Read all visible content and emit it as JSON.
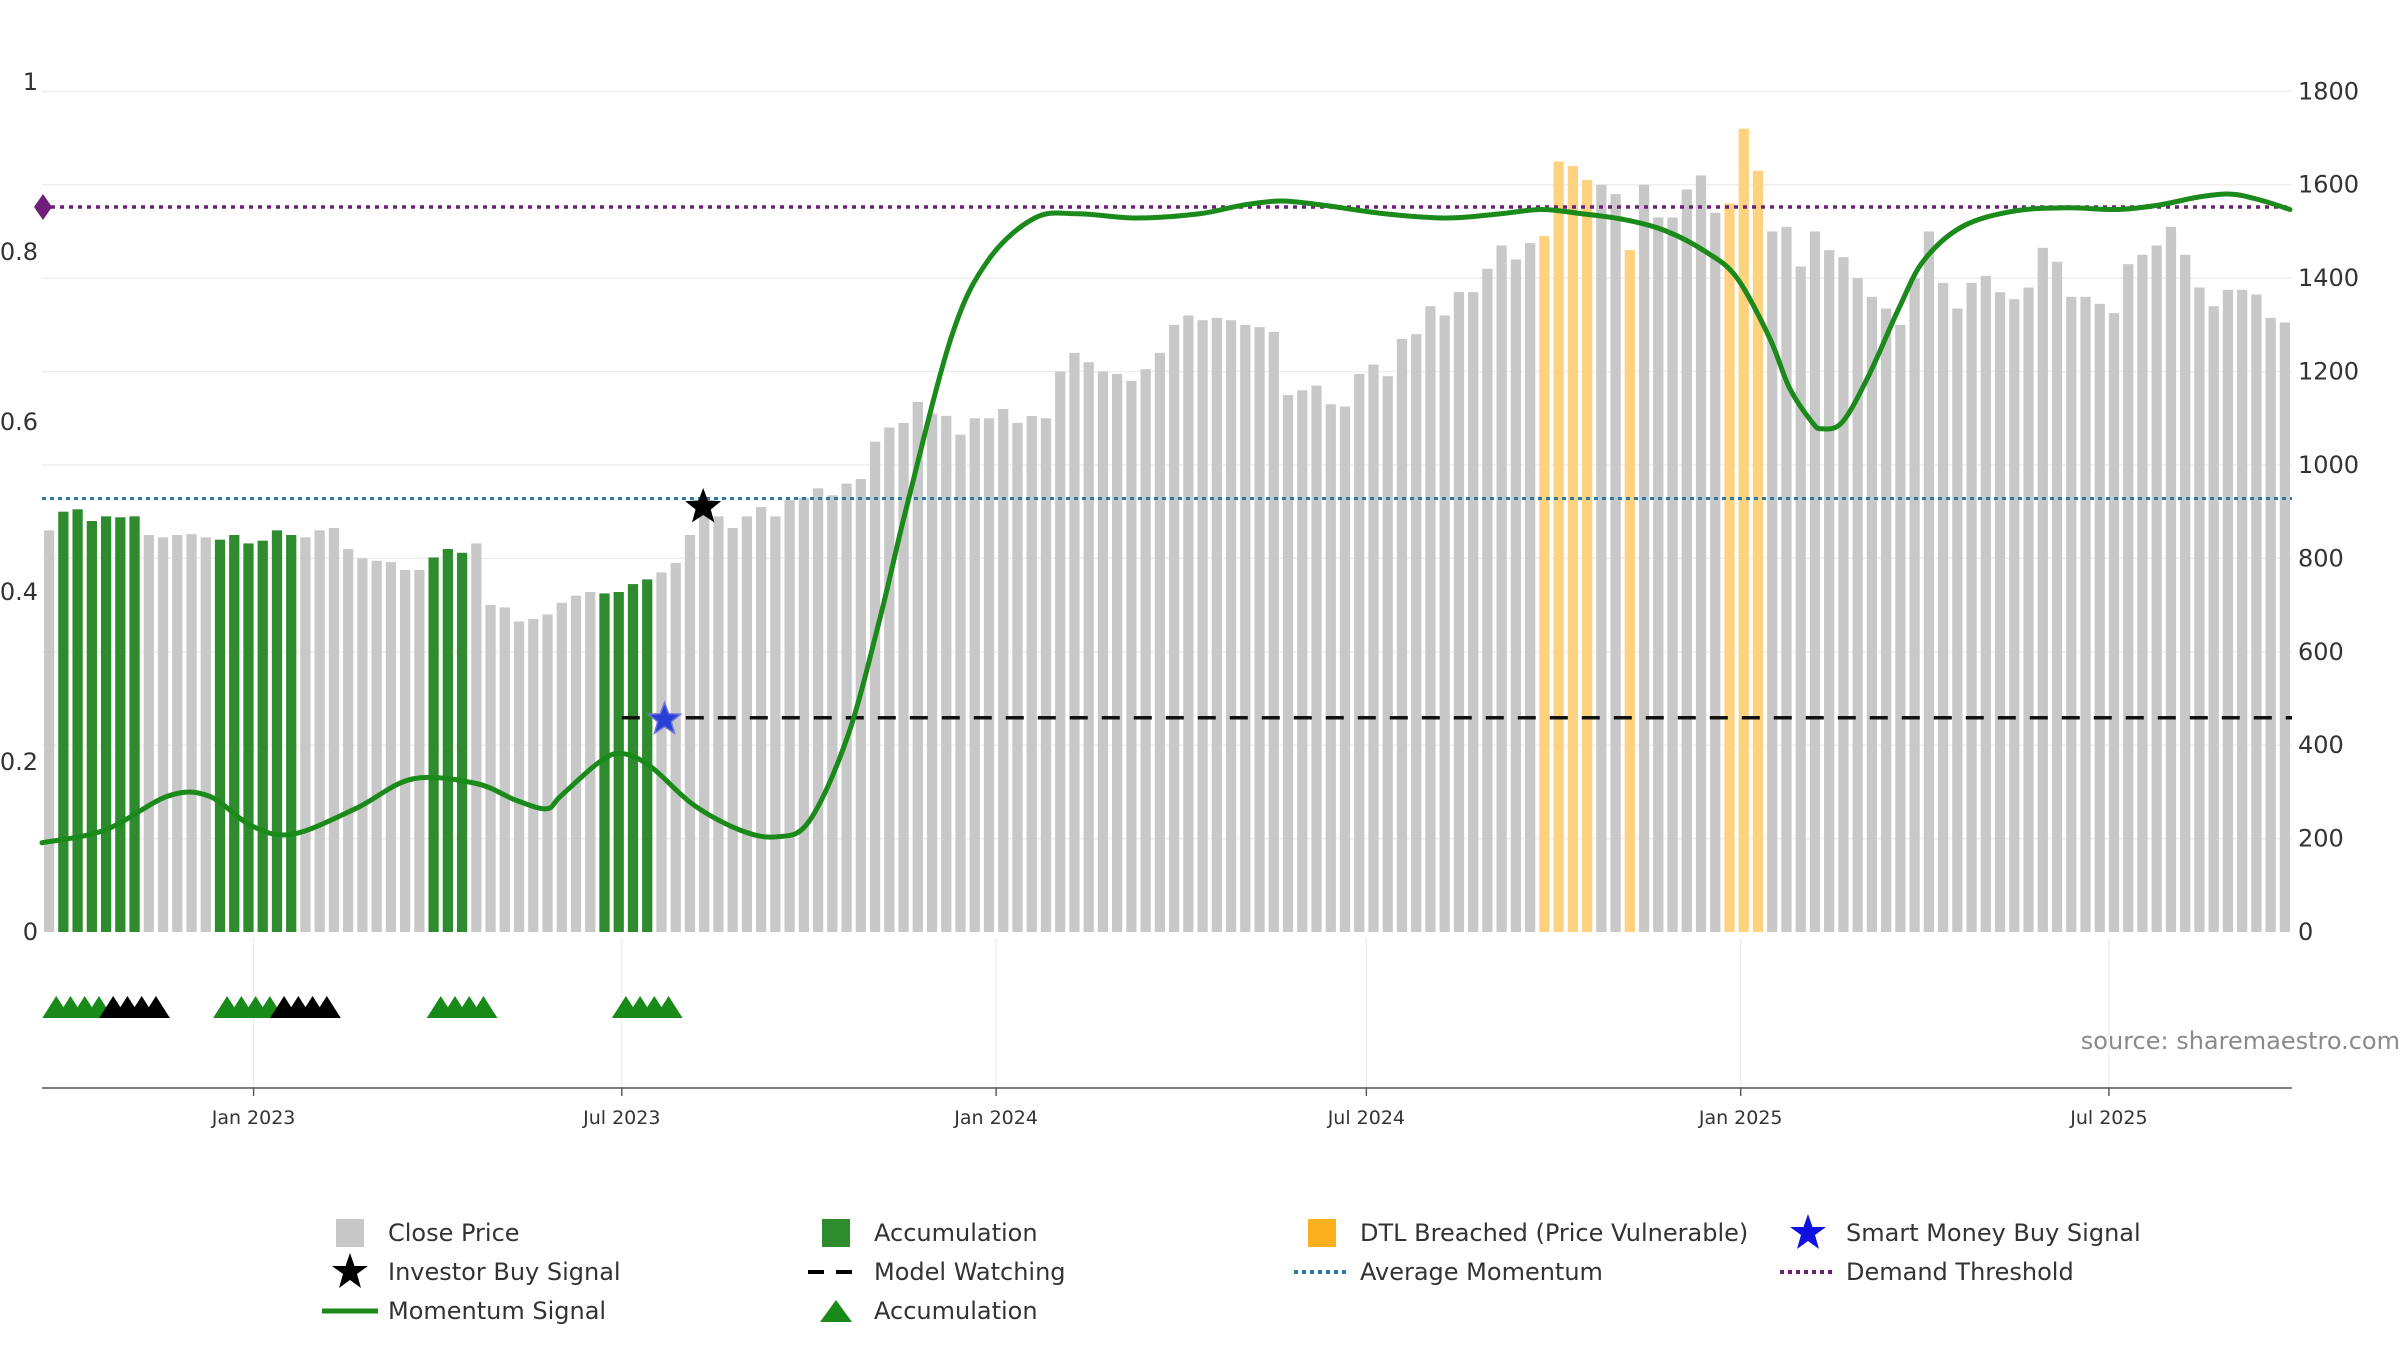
{
  "chart_data": {
    "type": "bar",
    "source": "source: sharemaestro.com",
    "left_axis": {
      "range": [
        0,
        1
      ],
      "ticks": [
        "0",
        "0.2",
        "0.4",
        "0.6",
        "0.8",
        "1"
      ],
      "tick_values": [
        0,
        0.2,
        0.4,
        0.6,
        0.8,
        1
      ]
    },
    "right_axis": {
      "range": [
        0,
        1820
      ],
      "ticks": [
        "0",
        "200",
        "400",
        "600",
        "800",
        "1000",
        "1200",
        "1400",
        "1600",
        "1800"
      ],
      "tick_values": [
        0,
        200,
        400,
        600,
        800,
        1000,
        1200,
        1400,
        1600,
        1800
      ]
    },
    "x_axis": {
      "start": "2022-09-19",
      "end": "2025-09-29",
      "ticks": [
        {
          "date": "2023-01-01",
          "label": "Jan 2023"
        },
        {
          "date": "2023-07-01",
          "label": "Jul 2023"
        },
        {
          "date": "2024-01-01",
          "label": "Jan 2024"
        },
        {
          "date": "2024-07-01",
          "label": "Jul 2024"
        },
        {
          "date": "2025-01-01",
          "label": "Jan 2025"
        },
        {
          "date": "2025-07-01",
          "label": "Jul 2025"
        }
      ]
    },
    "close_price": {
      "name": "Close Price",
      "start": "2022-09-19",
      "values": [
        860,
        900,
        905,
        880,
        890,
        888,
        890,
        850,
        845,
        850,
        852,
        845,
        840,
        850,
        832,
        838,
        860,
        850,
        845,
        860,
        865,
        820,
        800,
        795,
        792,
        775,
        775,
        802,
        820,
        812,
        832,
        700,
        695,
        665,
        670,
        680,
        705,
        720,
        728,
        725,
        728,
        745,
        755,
        770,
        790,
        850,
        900,
        890,
        865,
        890,
        910,
        890,
        925,
        930,
        950,
        935,
        960,
        970,
        1050,
        1080,
        1090,
        1135,
        1110,
        1105,
        1065,
        1100,
        1100,
        1120,
        1090,
        1105,
        1100,
        1200,
        1240,
        1220,
        1200,
        1195,
        1180,
        1205,
        1240,
        1300,
        1320,
        1310,
        1315,
        1310,
        1300,
        1295,
        1285,
        1150,
        1160,
        1170,
        1130,
        1125,
        1195,
        1215,
        1190,
        1270,
        1280,
        1340,
        1320,
        1370,
        1370,
        1420,
        1470,
        1440,
        1475,
        1490,
        1650,
        1640,
        1610,
        1600,
        1580,
        1460,
        1600,
        1530,
        1530,
        1590,
        1620,
        1540,
        1560,
        1720,
        1630,
        1500,
        1510,
        1425,
        1500,
        1460,
        1445,
        1400,
        1360,
        1335,
        1300,
        1400,
        1500,
        1390,
        1335,
        1390,
        1405,
        1370,
        1355,
        1380,
        1465,
        1435,
        1360,
        1360,
        1345,
        1325,
        1430,
        1450,
        1470,
        1510,
        1450,
        1380,
        1340,
        1375,
        1375,
        1365,
        1315,
        1305
      ]
    },
    "bar_colors": {
      "default": "#c8c8c8",
      "accumulation": "#2e8b2e",
      "dtl": "#ffd27f"
    },
    "accumulation_ranges": [
      [
        1,
        6
      ],
      [
        12,
        17
      ],
      [
        27,
        29
      ],
      [
        39,
        42
      ]
    ],
    "dtl_ranges": [
      [
        105,
        108
      ],
      [
        111,
        111
      ],
      [
        118,
        120
      ]
    ],
    "momentum": {
      "name": "Momentum Signal",
      "points": [
        [
          "2022-09-19",
          0.105
        ],
        [
          "2022-10-20",
          0.12
        ],
        [
          "2022-11-20",
          0.16
        ],
        [
          "2022-12-10",
          0.16
        ],
        [
          "2022-12-31",
          0.125
        ],
        [
          "2023-01-20",
          0.115
        ],
        [
          "2023-02-20",
          0.145
        ],
        [
          "2023-03-20",
          0.18
        ],
        [
          "2023-04-20",
          0.175
        ],
        [
          "2023-05-10",
          0.155
        ],
        [
          "2023-05-25",
          0.145
        ],
        [
          "2023-06-01",
          0.16
        ],
        [
          "2023-06-20",
          0.2
        ],
        [
          "2023-07-01",
          0.21
        ],
        [
          "2023-07-15",
          0.195
        ],
        [
          "2023-08-05",
          0.15
        ],
        [
          "2023-08-28",
          0.12
        ],
        [
          "2023-09-15",
          0.112
        ],
        [
          "2023-10-01",
          0.13
        ],
        [
          "2023-10-20",
          0.23
        ],
        [
          "2023-11-05",
          0.37
        ],
        [
          "2023-11-18",
          0.5
        ],
        [
          "2023-12-10",
          0.7
        ],
        [
          "2023-12-28",
          0.79
        ],
        [
          "2024-01-20",
          0.84
        ],
        [
          "2024-02-10",
          0.845
        ],
        [
          "2024-03-10",
          0.84
        ],
        [
          "2024-04-10",
          0.845
        ],
        [
          "2024-05-01",
          0.855
        ],
        [
          "2024-05-20",
          0.86
        ],
        [
          "2024-06-10",
          0.855
        ],
        [
          "2024-07-10",
          0.845
        ],
        [
          "2024-08-10",
          0.84
        ],
        [
          "2024-09-05",
          0.845
        ],
        [
          "2024-09-25",
          0.85
        ],
        [
          "2024-10-15",
          0.845
        ],
        [
          "2024-11-05",
          0.838
        ],
        [
          "2024-11-25",
          0.825
        ],
        [
          "2024-12-15",
          0.8
        ],
        [
          "2024-12-30",
          0.77
        ],
        [
          "2025-01-15",
          0.7
        ],
        [
          "2025-01-25",
          0.64
        ],
        [
          "2025-02-05",
          0.6
        ],
        [
          "2025-02-10",
          0.592
        ],
        [
          "2025-02-20",
          0.6
        ],
        [
          "2025-03-05",
          0.655
        ],
        [
          "2025-03-20",
          0.735
        ],
        [
          "2025-04-01",
          0.79
        ],
        [
          "2025-04-20",
          0.83
        ],
        [
          "2025-05-15",
          0.848
        ],
        [
          "2025-06-10",
          0.852
        ],
        [
          "2025-07-05",
          0.85
        ],
        [
          "2025-07-25",
          0.855
        ],
        [
          "2025-08-15",
          0.865
        ],
        [
          "2025-08-31",
          0.868
        ],
        [
          "2025-09-15",
          0.86
        ],
        [
          "2025-09-28",
          0.85
        ]
      ]
    },
    "average_momentum": 0.51,
    "demand_threshold": 0.853,
    "model_watching": {
      "value": 0.252,
      "from": "2023-07-01"
    },
    "investor_buy_signal": {
      "date": "2023-08-10",
      "value": 0.5
    },
    "smart_money_buy_signal": {
      "date": "2023-07-22",
      "value": 0.25
    },
    "accumulation_markers": {
      "green": [
        "2022-09-26",
        "2022-10-03",
        "2022-10-10",
        "2022-10-17",
        "2022-12-19",
        "2022-12-26",
        "2023-01-02",
        "2023-01-09",
        "2023-04-03",
        "2023-04-10",
        "2023-04-17",
        "2023-04-24",
        "2023-07-03",
        "2023-07-10",
        "2023-07-17",
        "2023-07-24"
      ],
      "black": [
        "2022-10-24",
        "2022-10-31",
        "2022-11-07",
        "2022-11-14",
        "2023-01-16",
        "2023-01-23",
        "2023-01-30",
        "2023-02-06"
      ]
    },
    "legend": [
      {
        "label": "Close Price",
        "icon": "gray-square"
      },
      {
        "label": "Accumulation",
        "icon": "green-square"
      },
      {
        "label": "DTL Breached (Price Vulnerable)",
        "icon": "orange-square"
      },
      {
        "label": "Smart Money Buy Signal",
        "icon": "blue-star"
      },
      {
        "label": "Investor Buy Signal",
        "icon": "black-star"
      },
      {
        "label": "Model Watching",
        "icon": "black-dash"
      },
      {
        "label": "Average Momentum",
        "icon": "blue-dotted"
      },
      {
        "label": "Demand Threshold",
        "icon": "purple-dotted"
      },
      {
        "label": "Momentum Signal",
        "icon": "green-line"
      },
      {
        "label": "Accumulation",
        "icon": "green-triangle"
      }
    ],
    "colors": {
      "momentum": "#1a8a1a",
      "average_momentum": "#2a7aa8",
      "demand_threshold": "#6e1f7a",
      "model_watching": "#111111",
      "smart_money_star": "#2a3fd4",
      "investor_star": "#000000",
      "triangle_green": "#178a17",
      "triangle_black": "#000000"
    }
  }
}
